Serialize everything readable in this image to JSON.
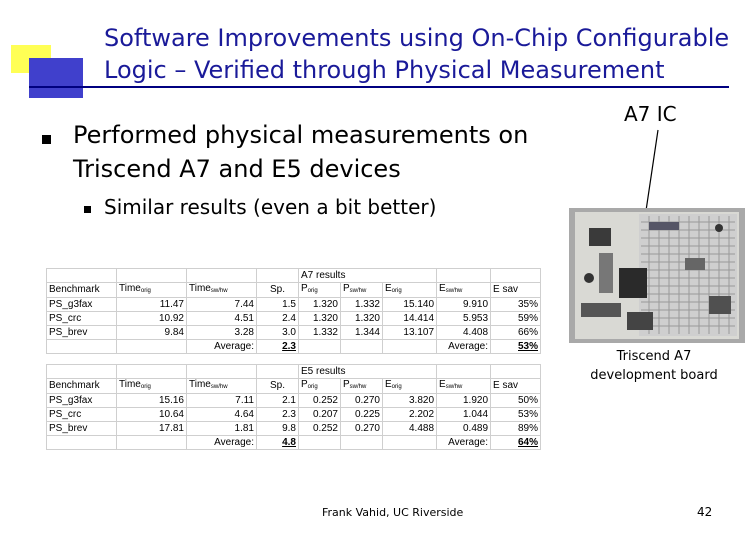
{
  "slide": {
    "title_line1": "Software Improvements using On-Chip Configurable",
    "title_line2": "Logic – Verified through Physical Measurement",
    "bullet1": "Performed physical measurements on Triscend A7 and E5 devices",
    "bullet2": "Similar results (even a bit better)",
    "a7_ic_label": "A7 IC",
    "photo_caption_line1": "Triscend A7",
    "photo_caption_line2": "development board",
    "footer": "Frank Vahid, UC Riverside",
    "page_number": "42"
  },
  "colors": {
    "title": "#1a1a99",
    "deco_yellow": "#ffff55",
    "deco_blue": "#4040cc"
  },
  "tables": [
    {
      "heading": "A7 results",
      "columns": [
        "Benchmark",
        "Time",
        "orig",
        "Time",
        "sw/hw",
        "Sp.",
        "P",
        "orig",
        "P",
        "sw/hw",
        "E",
        "orig",
        "E",
        "sw/hw",
        "E sav"
      ],
      "rows": [
        [
          "PS_g3fax",
          "11.47",
          "7.44",
          "1.5",
          "1.320",
          "1.332",
          "15.140",
          "9.910",
          "35%"
        ],
        [
          "PS_crc",
          "10.92",
          "4.51",
          "2.4",
          "1.320",
          "1.320",
          "14.414",
          "5.953",
          "59%"
        ],
        [
          "PS_brev",
          "9.84",
          "3.28",
          "3.0",
          "1.332",
          "1.344",
          "13.107",
          "4.408",
          "66%"
        ]
      ],
      "average_label": "Average:",
      "avg_speedup": "2.3",
      "avg_esav": "53%"
    },
    {
      "heading": "E5 results",
      "columns": [
        "Benchmark",
        "Time",
        "orig",
        "Time",
        "sw/hw",
        "Sp.",
        "P",
        "orig",
        "P",
        "sw/hw",
        "E",
        "orig",
        "E",
        "sw/hw",
        "E sav"
      ],
      "rows": [
        [
          "PS_g3fax",
          "15.16",
          "7.11",
          "2.1",
          "0.252",
          "0.270",
          "3.820",
          "1.920",
          "50%"
        ],
        [
          "PS_crc",
          "10.64",
          "4.64",
          "2.3",
          "0.207",
          "0.225",
          "2.202",
          "1.044",
          "53%"
        ],
        [
          "PS_brev",
          "17.81",
          "1.81",
          "9.8",
          "0.252",
          "0.270",
          "4.488",
          "0.489",
          "89%"
        ]
      ],
      "average_label": "Average:",
      "avg_speedup": "4.8",
      "avg_esav": "64%"
    }
  ]
}
